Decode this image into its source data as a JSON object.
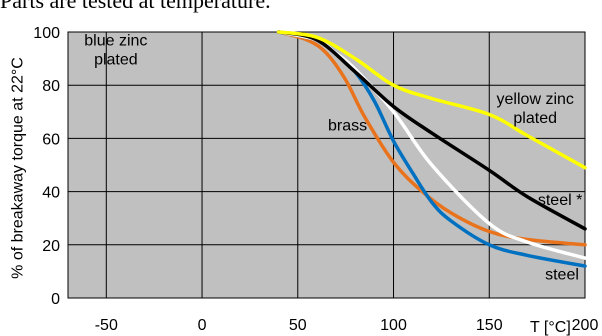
{
  "header_text": "Parts are tested at temperature.",
  "chart_data": {
    "type": "line",
    "title": "",
    "xlabel": "T [°C]",
    "ylabel": "% of breakaway torque at 22°C",
    "xlim": [
      -70,
      200
    ],
    "ylim": [
      0,
      100
    ],
    "x_ticks": [
      -50,
      0,
      50,
      100,
      150,
      200
    ],
    "y_ticks": [
      0,
      20,
      40,
      60,
      80,
      100
    ],
    "grid": true,
    "background_color": "#c0c0c0",
    "series": [
      {
        "name": "yellow zinc plated",
        "color": "#ffff00",
        "x": [
          40,
          60,
          80,
          100,
          120,
          150,
          170,
          200
        ],
        "y": [
          100,
          98,
          90,
          80,
          75,
          69,
          61,
          49
        ]
      },
      {
        "name": "steel *",
        "color": "#000000",
        "x": [
          40,
          60,
          80,
          100,
          120,
          150,
          170,
          200
        ],
        "y": [
          100,
          97,
          85,
          72,
          62,
          48,
          38,
          26
        ]
      },
      {
        "name": "steel",
        "color": "#0070c0",
        "x": [
          40,
          60,
          70,
          80,
          90,
          100,
          110,
          120,
          130,
          150,
          170,
          200
        ],
        "y": [
          100,
          97,
          92,
          85,
          74,
          59,
          47,
          36,
          29,
          20,
          16,
          12
        ]
      },
      {
        "name": "",
        "color": "#ffffff",
        "x": [
          40,
          60,
          70,
          80,
          100,
          120,
          150,
          170,
          200
        ],
        "y": [
          100,
          97,
          92,
          86,
          70,
          50,
          28,
          21,
          15
        ]
      },
      {
        "name": "brass",
        "color": "#e8731c",
        "x": [
          40,
          55,
          65,
          75,
          85,
          100,
          115,
          130,
          150,
          170,
          200
        ],
        "y": [
          100,
          97,
          92,
          82,
          68,
          51,
          40,
          32,
          25,
          22,
          20
        ]
      }
    ],
    "annotations": [
      {
        "lines": [
          "blue zinc",
          "plated"
        ],
        "x": -45,
        "y": 95
      },
      {
        "lines": [
          "brass"
        ],
        "x": 76,
        "y": 63
      },
      {
        "lines": [
          "yellow zinc",
          "plated"
        ],
        "x": 174,
        "y": 73
      },
      {
        "lines": [
          "steel *"
        ],
        "x": 187,
        "y": 35
      },
      {
        "lines": [
          "steel"
        ],
        "x": 188,
        "y": 7
      }
    ]
  }
}
